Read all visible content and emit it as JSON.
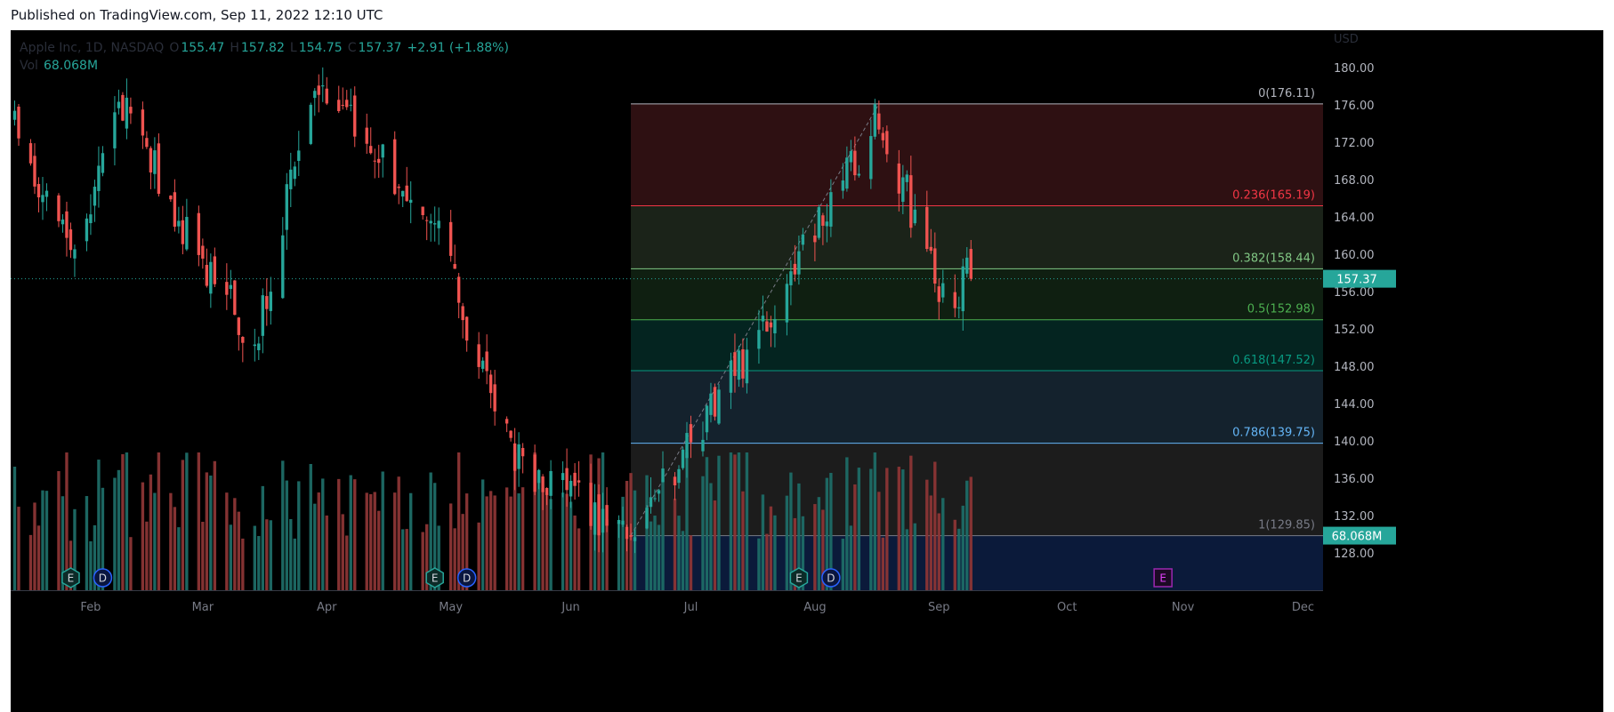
{
  "published": "Published on TradingView.com, Sep 11, 2022 12:10 UTC",
  "legend": {
    "symbol": "Apple Inc, 1D, NASDAQ",
    "o_label": "O",
    "open": "155.47",
    "h_label": "H",
    "high": "157.82",
    "l_label": "L",
    "low": "154.75",
    "c_label": "C",
    "close": "157.37",
    "change": "+2.91 (+1.88%)",
    "vol_label": "Vol",
    "volume": "68.068M"
  },
  "colors": {
    "up": "#26a69a",
    "down": "#ef5350",
    "grid_text": "#b2b5be",
    "price_badge": "#26a69a",
    "earnings": "#26a69a",
    "dividend": "#2962ff",
    "future_earnings": "#9c27b0"
  },
  "chart_data": {
    "type": "candlestick",
    "y_axis": {
      "unit": "USD",
      "range": [
        124,
        184
      ],
      "ticks": [
        "128.00",
        "132.00",
        "136.00",
        "140.00",
        "144.00",
        "148.00",
        "152.00",
        "156.00",
        "160.00",
        "164.00",
        "168.00",
        "172.00",
        "176.00",
        "180.00"
      ]
    },
    "x_axis": {
      "range": [
        "2022-01-12",
        "2022-12-06"
      ],
      "labels": [
        {
          "date": "2022-02-01",
          "label": "Feb"
        },
        {
          "date": "2022-03-01",
          "label": "Mar"
        },
        {
          "date": "2022-04-01",
          "label": "Apr"
        },
        {
          "date": "2022-05-02",
          "label": "May"
        },
        {
          "date": "2022-06-01",
          "label": "Jun"
        },
        {
          "date": "2022-07-01",
          "label": "Jul"
        },
        {
          "date": "2022-08-01",
          "label": "Aug"
        },
        {
          "date": "2022-09-01",
          "label": "Sep"
        },
        {
          "date": "2022-10-03",
          "label": "Oct"
        },
        {
          "date": "2022-11-01",
          "label": "Nov"
        },
        {
          "date": "2022-12-01",
          "label": "Dec"
        }
      ]
    },
    "last_price": {
      "value": 157.37,
      "label": "157.37"
    },
    "last_volume": {
      "label": "68.068M"
    },
    "key_prices": [
      {
        "date": "2022-01-13",
        "close": 173.5
      },
      {
        "date": "2022-01-27",
        "close": 159.2
      },
      {
        "date": "2022-02-09",
        "close": 176.3
      },
      {
        "date": "2022-02-24",
        "close": 162.7
      },
      {
        "date": "2022-03-14",
        "close": 150.6
      },
      {
        "date": "2022-03-29",
        "close": 178.9
      },
      {
        "date": "2022-04-28",
        "close": 163.6
      },
      {
        "date": "2022-05-11",
        "close": 146.5
      },
      {
        "date": "2022-05-19",
        "close": 137.4
      },
      {
        "date": "2022-06-16",
        "close": 130.1
      },
      {
        "date": "2022-07-14",
        "close": 148.5
      },
      {
        "date": "2022-08-17",
        "close": 174.5
      },
      {
        "date": "2022-09-02",
        "close": 155.8
      },
      {
        "date": "2022-09-09",
        "close": 157.37
      }
    ],
    "fibonacci": {
      "start": {
        "date": "2022-06-16",
        "price": 129.85
      },
      "end": {
        "date": "2022-08-17",
        "price": 176.11
      },
      "levels": [
        {
          "ratio": 0,
          "price": 176.11,
          "label": "0(176.11)",
          "color": "#b2b5be",
          "fill": "#000000"
        },
        {
          "ratio": 0.236,
          "price": 165.19,
          "label": "0.236(165.19)",
          "color": "#f23645",
          "fill": "#2e1012"
        },
        {
          "ratio": 0.382,
          "price": 158.44,
          "label": "0.382(158.44)",
          "color": "#81c784",
          "fill": "#1b2319"
        },
        {
          "ratio": 0.5,
          "price": 152.98,
          "label": "0.5(152.98)",
          "color": "#4caf50",
          "fill": "#0f1f11"
        },
        {
          "ratio": 0.618,
          "price": 147.52,
          "label": "0.618(147.52)",
          "color": "#089981",
          "fill": "#042420"
        },
        {
          "ratio": 0.786,
          "price": 139.75,
          "label": "0.786(139.75)",
          "color": "#64b5f6",
          "fill": "#14222d"
        },
        {
          "ratio": 1,
          "price": 129.85,
          "label": "1(129.85)",
          "color": "#787b86",
          "fill": "#1c1c1c"
        }
      ]
    },
    "events": [
      {
        "type": "earnings",
        "label": "E",
        "date": "2022-01-27"
      },
      {
        "type": "dividend",
        "label": "D",
        "date": "2022-02-04"
      },
      {
        "type": "earnings",
        "label": "E",
        "date": "2022-04-28"
      },
      {
        "type": "dividend",
        "label": "D",
        "date": "2022-05-06"
      },
      {
        "type": "earnings",
        "label": "E",
        "date": "2022-07-28"
      },
      {
        "type": "dividend",
        "label": "D",
        "date": "2022-08-05"
      },
      {
        "type": "future_earnings",
        "label": "E",
        "date": "2022-10-27"
      }
    ]
  }
}
